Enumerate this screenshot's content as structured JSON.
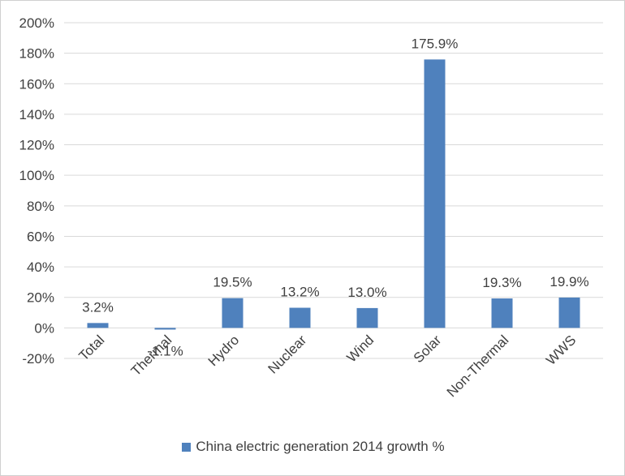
{
  "chart_data": {
    "type": "bar",
    "categories": [
      "Total",
      "Thermal",
      "Hydro",
      "Nuclear",
      "Wind",
      "Solar",
      "Non-Thermal",
      "WWS"
    ],
    "values": [
      3.2,
      -1.1,
      19.5,
      13.2,
      13.0,
      175.9,
      19.3,
      19.9
    ],
    "data_labels": [
      "3.2%",
      "-1.1%",
      "19.5%",
      "13.2%",
      "13.0%",
      "175.9%",
      "19.3%",
      "19.9%"
    ],
    "series": [
      {
        "name": "China electric generation 2014 growth %",
        "values": [
          3.2,
          -1.1,
          19.5,
          13.2,
          13.0,
          175.9,
          19.3,
          19.9
        ]
      }
    ],
    "ylim": [
      -20,
      200
    ],
    "yticks": [
      -20,
      0,
      20,
      40,
      60,
      80,
      100,
      120,
      140,
      160,
      180,
      200
    ],
    "ytick_labels": [
      "-20%",
      "0%",
      "20%",
      "40%",
      "60%",
      "80%",
      "100%",
      "120%",
      "140%",
      "160%",
      "180%",
      "200%"
    ],
    "grid": true,
    "legend_position": "bottom",
    "bar_color": "#4f81bd"
  }
}
